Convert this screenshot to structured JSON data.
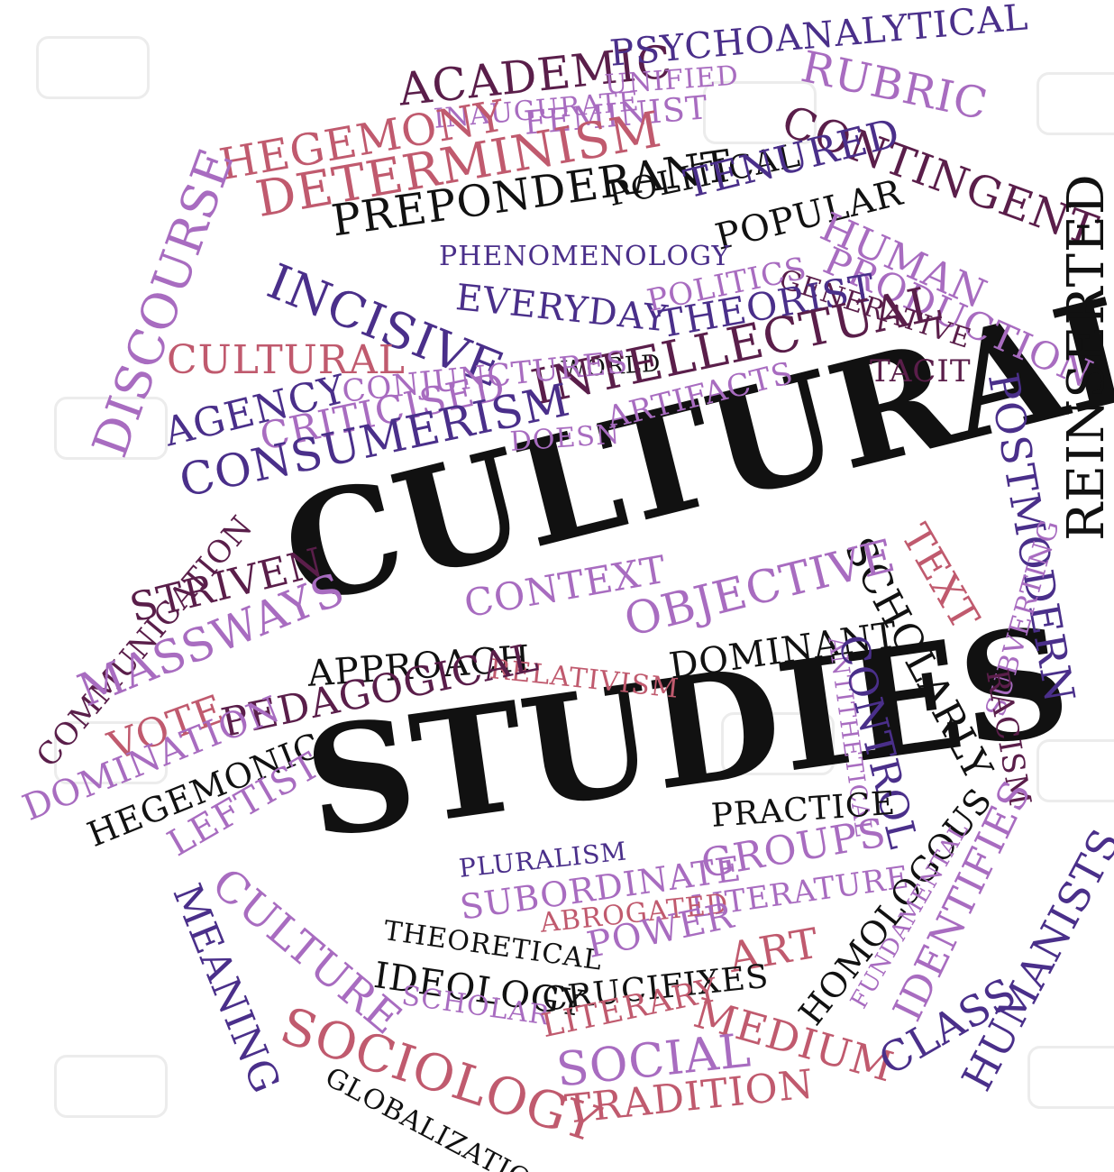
{
  "colors": {
    "black": "#111111",
    "purple": "#4a2f8a",
    "violet": "#a86cc0",
    "rose": "#c05a6e",
    "plum": "#5a1e4a",
    "background": "#ffffff"
  },
  "words": [
    {
      "text": "CULTURAL",
      "color": "black"
    },
    {
      "text": "STUDIES",
      "color": "black"
    },
    {
      "text": "ACADEMIC",
      "color": "plum"
    },
    {
      "text": "PSYCHOANALYTICAL",
      "color": "purple"
    },
    {
      "text": "UNIFIED",
      "color": "violet"
    },
    {
      "text": "INAUGURATE",
      "color": "violet"
    },
    {
      "text": "HEGEMONY",
      "color": "rose"
    },
    {
      "text": "FEMINIST",
      "color": "violet"
    },
    {
      "text": "DETERMINISM",
      "color": "rose"
    },
    {
      "text": "PREPONDERANT",
      "color": "black"
    },
    {
      "text": "POLITICAL",
      "color": "black"
    },
    {
      "text": "RUBRIC",
      "color": "violet"
    },
    {
      "text": "CONTINGENT",
      "color": "plum"
    },
    {
      "text": "TENURED",
      "color": "purple"
    },
    {
      "text": "POPULAR",
      "color": "black"
    },
    {
      "text": "HUMAN",
      "color": "violet"
    },
    {
      "text": "PRODUCTION",
      "color": "violet"
    },
    {
      "text": "GENERATIVE",
      "color": "plum"
    },
    {
      "text": "DISCOURSE",
      "color": "violet"
    },
    {
      "text": "PHENOMENOLOGY",
      "color": "purple"
    },
    {
      "text": "INCISIVE",
      "color": "purple"
    },
    {
      "text": "EVERYDAY",
      "color": "purple"
    },
    {
      "text": "POLITICS",
      "color": "violet"
    },
    {
      "text": "THEORIST",
      "color": "purple"
    },
    {
      "text": "REINSERTED",
      "color": "black"
    },
    {
      "text": "CULTURAL",
      "color": "rose"
    },
    {
      "text": "WORLD",
      "color": "black"
    },
    {
      "text": "INTELLECTUAL",
      "color": "plum"
    },
    {
      "text": "TACIT",
      "color": "plum"
    },
    {
      "text": "CONJUNCTURES",
      "color": "violet"
    },
    {
      "text": "AGENCY",
      "color": "purple"
    },
    {
      "text": "CRITICISED",
      "color": "violet"
    },
    {
      "text": "DOESN",
      "color": "violet"
    },
    {
      "text": "ARTIFACTS",
      "color": "violet"
    },
    {
      "text": "POSTMODERN",
      "color": "purple"
    },
    {
      "text": "CONSUMERISM",
      "color": "purple"
    },
    {
      "text": "COMMUNICATION",
      "color": "plum"
    },
    {
      "text": "SCHOLARLY",
      "color": "black"
    },
    {
      "text": "TEXT",
      "color": "rose"
    },
    {
      "text": "SUBVERTING",
      "color": "violet"
    },
    {
      "text": "STRIVEN",
      "color": "plum"
    },
    {
      "text": "CONTEXT",
      "color": "violet"
    },
    {
      "text": "OBJECTIVE",
      "color": "violet"
    },
    {
      "text": "MASSWAYS",
      "color": "violet"
    },
    {
      "text": "APPROACH",
      "color": "black"
    },
    {
      "text": "RELATIVISM",
      "color": "rose"
    },
    {
      "text": "DOMINANT",
      "color": "black"
    },
    {
      "text": "ANTITHETICAL",
      "color": "violet"
    },
    {
      "text": "CONTROL",
      "color": "purple"
    },
    {
      "text": "RACISM",
      "color": "plum"
    },
    {
      "text": "VOTE",
      "color": "rose"
    },
    {
      "text": "PEDAGOGICAL",
      "color": "plum"
    },
    {
      "text": "DOMINATION",
      "color": "violet"
    },
    {
      "text": "HEGEMONIC",
      "color": "black"
    },
    {
      "text": "LEFTIST",
      "color": "violet"
    },
    {
      "text": "PRACTICE",
      "color": "black"
    },
    {
      "text": "PLURALISM",
      "color": "purple"
    },
    {
      "text": "GROUPS",
      "color": "violet"
    },
    {
      "text": "SUBORDINATE",
      "color": "violet"
    },
    {
      "text": "LITERATURE",
      "color": "violet"
    },
    {
      "text": "ABROGATED",
      "color": "rose"
    },
    {
      "text": "MEANING",
      "color": "purple"
    },
    {
      "text": "CULTURE",
      "color": "violet"
    },
    {
      "text": "THEORETICAL",
      "color": "black"
    },
    {
      "text": "POWER",
      "color": "violet"
    },
    {
      "text": "ART",
      "color": "rose"
    },
    {
      "text": "HOMOLOGOUS",
      "color": "black"
    },
    {
      "text": "FUNDAMENTAL",
      "color": "violet"
    },
    {
      "text": "IDENTIFIES",
      "color": "violet"
    },
    {
      "text": "IDEOLOGY",
      "color": "black"
    },
    {
      "text": "CRUCIFIXES",
      "color": "black"
    },
    {
      "text": "HUMANISTS",
      "color": "purple"
    },
    {
      "text": "SCHOLAR",
      "color": "violet"
    },
    {
      "text": "LITERARY",
      "color": "rose"
    },
    {
      "text": "MEDIUM",
      "color": "rose"
    },
    {
      "text": "CLASS",
      "color": "purple"
    },
    {
      "text": "SOCIOLOGY",
      "color": "rose"
    },
    {
      "text": "SOCIAL",
      "color": "violet"
    },
    {
      "text": "GLOBALIZATION",
      "color": "black"
    },
    {
      "text": "TRADITION",
      "color": "rose"
    }
  ]
}
